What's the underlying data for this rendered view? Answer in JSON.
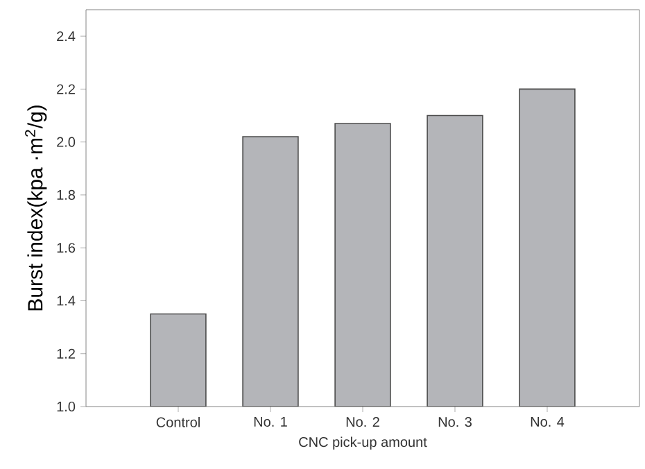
{
  "chart_data": {
    "type": "bar",
    "xlabel": "CNC pick-up amount",
    "ylabel": "Burst index(kpa ·m$^{2}$/g)",
    "categories": [
      "Control",
      "No. 1",
      "No. 2",
      "No. 3",
      "No. 4"
    ],
    "values": [
      1.35,
      2.02,
      2.07,
      2.1,
      2.2
    ],
    "color": "#b4b5b9",
    "ylim": [
      1.0,
      2.5
    ],
    "yticks": [
      {
        "value": 1,
        "label": "1.0"
      },
      1.2,
      1.4,
      1.6,
      1.8,
      {
        "value": 2,
        "label": "2.0"
      },
      2.2,
      2.4
    ],
    "grid": false
  }
}
